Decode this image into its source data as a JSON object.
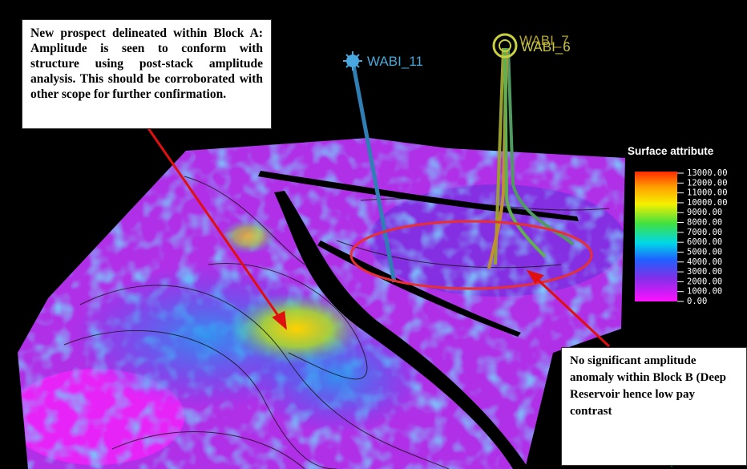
{
  "annotations": [
    {
      "text": "New prospect delineated within Block A: Amplitude is seen to conform with structure using post-stack amplitude analysis. This should be corroborated with other scope for further confirmation."
    },
    {
      "text": "No significant amplitude anomaly within Block B (Deep Reservoir hence low pay contrast"
    }
  ],
  "wells": [
    {
      "label": "WABI_11"
    },
    {
      "label": "WABI_7"
    },
    {
      "label": "WABI_6"
    }
  ],
  "legend": {
    "title": "Surface attribute",
    "labels": [
      "13000.00",
      "12000.00",
      "11000.00",
      "10000.00",
      "9000.00",
      "8000.00",
      "7000.00",
      "6000.00",
      "5000.00",
      "4000.00",
      "3000.00",
      "2000.00",
      "1000.00",
      "0.00"
    ]
  }
}
